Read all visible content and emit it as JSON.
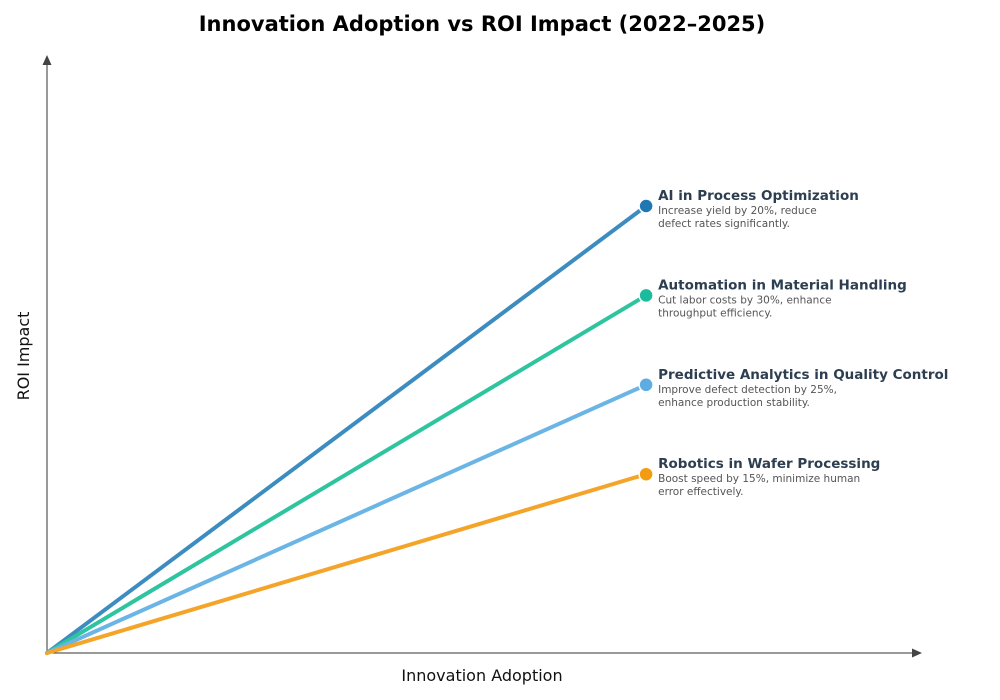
{
  "chart_data": {
    "type": "line",
    "title": "Innovation Adoption vs ROI Impact (2022–2025)",
    "xlabel": "Innovation Adoption",
    "ylabel": "ROI Impact",
    "xlim": [
      0,
      1.02
    ],
    "ylim": [
      0,
      1
    ],
    "grid": false,
    "series": [
      {
        "name": "AI in Process Optimization",
        "description": [
          "Increase yield by 20%, reduce",
          "defect rates significantly."
        ],
        "x": [
          0,
          0.7
        ],
        "y": [
          0,
          0.75
        ],
        "color": "#1f77b4",
        "line_color": "#3d8cc0"
      },
      {
        "name": "Automation in Material Handling",
        "description": [
          "Cut labor costs by 30%, enhance",
          "throughput efficiency."
        ],
        "x": [
          0,
          0.7
        ],
        "y": [
          0,
          0.6
        ],
        "color": "#1abc9c",
        "line_color": "#2ec4a0"
      },
      {
        "name": "Predictive Analytics in Quality Control",
        "description": [
          "Improve defect detection by 25%,",
          "enhance production stability."
        ],
        "x": [
          0,
          0.7
        ],
        "y": [
          0,
          0.45
        ],
        "color": "#5dade2",
        "line_color": "#6bb5e6"
      },
      {
        "name": "Robotics in Wafer Processing",
        "description": [
          "Boost speed by 15%, minimize human",
          "error effectively."
        ],
        "x": [
          0,
          0.7
        ],
        "y": [
          0,
          0.3
        ],
        "color": "#f39c12",
        "line_color": "#f5a42a"
      }
    ]
  }
}
